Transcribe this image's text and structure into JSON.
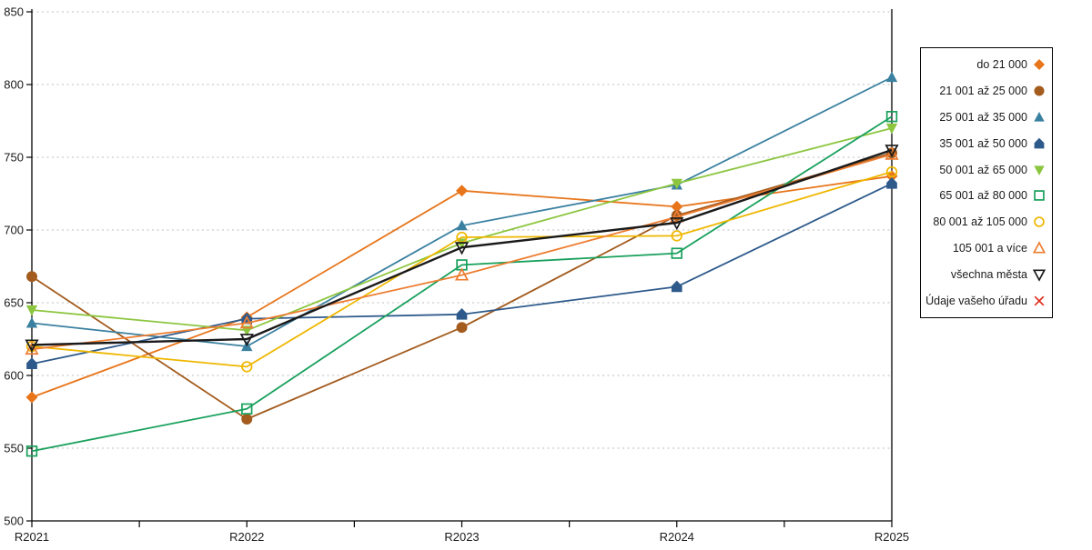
{
  "chart_data": {
    "type": "line",
    "title": "",
    "xlabel": "",
    "ylabel": "",
    "x_categories": [
      "R2021",
      "R2022",
      "R2023",
      "R2024",
      "R2025"
    ],
    "ylim": [
      500,
      850
    ],
    "ytick_step": 50,
    "ytick_labels": [
      "500",
      "550",
      "600",
      "650",
      "700",
      "750",
      "800",
      "850"
    ],
    "grid": "horizontal dotted lines at every 50 units, 550-850",
    "legend_position": "right, outside plot, bordered box, markers right of labels",
    "axis_color": "#000000",
    "gridline_color": "#bdbdbd",
    "series": [
      {
        "name": "do 21 000",
        "color": "#E8751A",
        "marker": "diamond-filled",
        "line_width": 1.8,
        "values": [
          585,
          640,
          727,
          716,
          737
        ]
      },
      {
        "name": "21 001 až 25 000",
        "color": "#A35B1E",
        "marker": "circle-filled",
        "line_width": 1.8,
        "values": [
          668,
          570,
          633,
          710,
          753
        ]
      },
      {
        "name": "25 001 až 35 000",
        "color": "#3A80A0",
        "marker": "triangle-up-filled",
        "line_width": 1.8,
        "values": [
          636,
          620,
          703,
          731,
          805
        ]
      },
      {
        "name": "35 001 až 50 000",
        "color": "#2E5A8B",
        "marker": "pentagon-filled",
        "line_width": 1.8,
        "values": [
          608,
          639,
          642,
          661,
          732
        ]
      },
      {
        "name": "50 001 až 65 000",
        "color": "#8CC63F",
        "marker": "triangle-down-filled",
        "line_width": 1.8,
        "values": [
          645,
          631,
          691,
          732,
          770
        ]
      },
      {
        "name": "65 001 až 80 000",
        "color": "#18A05C",
        "marker": "square-open",
        "line_width": 1.8,
        "values": [
          548,
          577,
          676,
          684,
          778
        ]
      },
      {
        "name": "80 001 až 105 000",
        "color": "#EFB700",
        "marker": "circle-open",
        "line_width": 1.8,
        "values": [
          620,
          606,
          695,
          696,
          740
        ]
      },
      {
        "name": "105 001 a více",
        "color": "#ED7D31",
        "marker": "triangle-up-open",
        "line_width": 1.8,
        "values": [
          618,
          636,
          669,
          709,
          752
        ]
      },
      {
        "name": "všechna města",
        "color": "#1a1a1a",
        "marker": "triangle-down-open",
        "line_width": 2.4,
        "values": [
          621,
          625,
          688,
          705,
          755
        ]
      },
      {
        "name": "Údaje vašeho úřadu",
        "color": "#E0301E",
        "marker": "x",
        "line_width": 1.8,
        "values": []
      }
    ]
  }
}
